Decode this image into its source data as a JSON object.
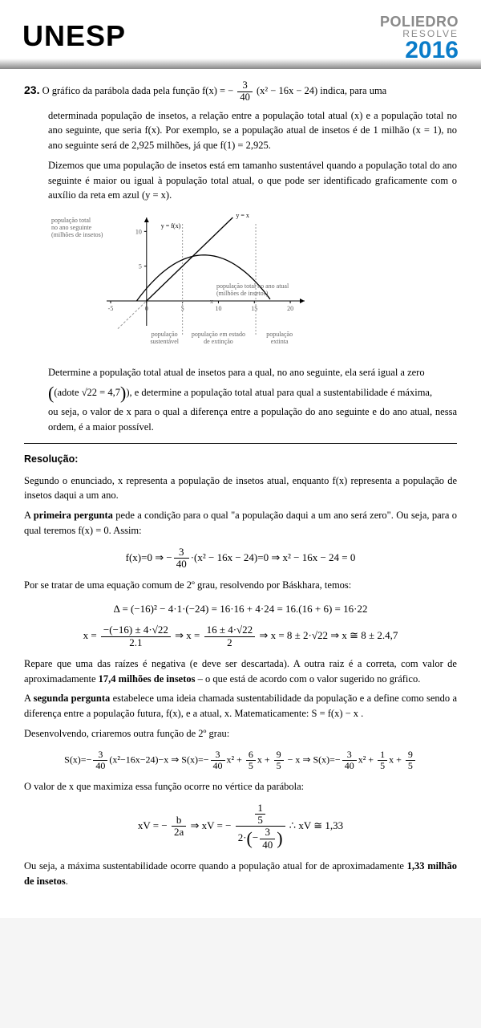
{
  "header": {
    "title_left": "UNESP",
    "brand_top": "POLIEDRO",
    "brand_sub": "RESOLVE",
    "year": "2016",
    "colors": {
      "brand_gray": "#8a8a8a",
      "year_blue": "#0a7cc9"
    }
  },
  "question": {
    "number": "23.",
    "para1_prefix": "O gráfico da parábola dada pela função  f(x) = −",
    "fn_num": "3",
    "fn_den": "40",
    "fn_tail": "(x² − 16x − 24)  indica, para uma",
    "para1_rest": "determinada população de insetos, a relação entre a população total atual (x) e a população total no ano seguinte, que seria f(x). Por exemplo, se a população atual de insetos é de 1 milhão (x = 1), no ano seguinte será de 2,925 milhões, já que f(1) = 2,925.",
    "para2": "Dizemos que uma população de insetos está em tamanho sustentável quando a população total do ano seguinte é maior ou igual à população total atual, o que pode ser identificado graficamente com o auxílio da reta em azul (y = x).",
    "chart": {
      "type": "line+parabola",
      "xlim": [
        -5,
        22
      ],
      "ylim": [
        -3,
        12
      ],
      "xticks": [
        -5,
        0,
        5,
        10,
        15,
        20
      ],
      "yticks": [
        5,
        10
      ],
      "x_div_dash": [
        5,
        15.2
      ],
      "line_yx": {
        "label": "y = x",
        "color": "#000"
      },
      "curve": {
        "label": "y = f(x)",
        "color": "#000",
        "roots": [
          -1.4,
          17.4
        ],
        "vertex": [
          8,
          6.6
        ]
      },
      "dashed_neg_line": {
        "slope": 1,
        "intercept": 0,
        "color": "#666"
      },
      "ylabel_lines": [
        "população total",
        "no ano seguinte",
        "(milhões de insetos)"
      ],
      "xlabel_lines": [
        "população total no ano atual",
        "(milhões de insetos)"
      ],
      "region_labels": [
        "população\nsustentável",
        "população em estado\nde extinção",
        "população\nextinta"
      ],
      "axis_color": "#000",
      "grid_dash_color": "#999",
      "label_fontsize": 8,
      "background_color": "#ffffff"
    },
    "det_line1": "Determine a população total atual de insetos para a qual, no ano seguinte, ela será igual a zero",
    "det_line2_prefix": "(adote ",
    "det_sqrt_approx": "√22 = 4,7",
    "det_line2_suffix": "), e determine a população total atual para qual a sustentabilidade é máxima,",
    "det_line3": "ou seja, o valor de x para o qual a diferença entre a população do ano seguinte e do ano atual, nessa ordem, é a maior possível."
  },
  "resolution": {
    "heading": "Resolução:",
    "p1": "Segundo o enunciado, x representa a população de insetos atual, enquanto f(x) representa a população de insetos daqui a um ano.",
    "p2_pre": "A ",
    "p2_bold": "primeira pergunta",
    "p2_post": " pede a condição para o qual \"a população daqui a um ano será zero\". Ou seja, para o qual teremos f(x) = 0. Assim:",
    "eq1": "f(x) = 0  ⇒  −(3/40)·(x² − 16x − 24) = 0   ⇒ x² − 16x − 24 = 0",
    "p3": "Por se tratar de uma equação comum de 2º grau, resolvendo por Báskhara, temos:",
    "eq2a": "Δ = (−16)² − 4·1·(−24) = 16·16 + 4·24 = 16.(16 + 6) = 16·22",
    "eq2b_num": "−(−16) ± 4·√22",
    "eq2b_den": "2.1",
    "eq2c_num": "16 ± 4·√22",
    "eq2c_den": "2",
    "eq2d": "x = 8 ± 2·√22  ⇒  x ≅ 8 ± 2.4,7",
    "p4_pre": "Repare que uma das raízes é negativa (e deve ser descartada). A outra raiz é a correta, com valor de aproximadamente ",
    "p4_bold": "17,4 milhões de insetos",
    "p4_post": " – o que está de acordo com o valor sugerido no gráfico.",
    "p5_pre": "A ",
    "p5_bold": "segunda pergunta",
    "p5_post": " estabelece uma ideia chamada sustentabilidade da população e a define como sendo a diferença entre a população futura, f(x), e a atual, x. Matematicamente:  S = f(x) − x .",
    "p6": "Desenvolvendo, criaremos outra função de 2º grau:",
    "eq3": "S(x) = −(3/40)(x² − 16x − 24) − x ⇒ S(x) = −(3/40)x² + (6/5)x + (9/5) − x ⇒ S(x) = −(3/40)x² + (1/5)x + (9/5)",
    "p7": "O valor de x que maximiza essa função ocorre no vértice da parábola:",
    "eq4_lhs": "xV = −",
    "eq4_b": "b",
    "eq4_2a": "2a",
    "eq4_mid": "  ⇒ xV = −",
    "eq4_topnum": "1",
    "eq4_topden": "5",
    "eq4_botfactor": "2·",
    "eq4_botnum": "3",
    "eq4_botden": "40",
    "eq4_result": "   ∴  xV ≅ 1,33",
    "p8_pre": "Ou seja, a máxima sustentabilidade ocorre quando a população atual for de aproximadamente ",
    "p8_bold": "1,33 milhão de insetos",
    "p8_post": "."
  }
}
